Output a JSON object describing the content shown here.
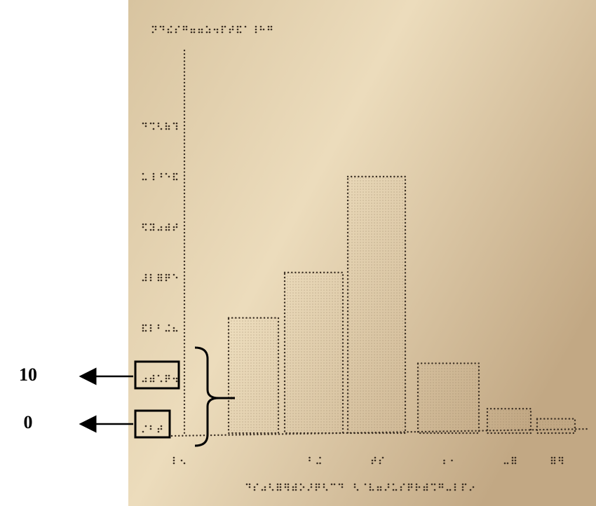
{
  "chart_data": {
    "type": "bar",
    "categories": [
      null,
      null,
      null,
      null,
      null,
      null
    ],
    "values": [
      22,
      31,
      50,
      13,
      4,
      2
    ],
    "color": "#3a2e22",
    "ylim": [
      0,
      75
    ],
    "yticks": [
      0,
      10,
      20,
      30,
      40,
      50,
      60
    ]
  }
}
